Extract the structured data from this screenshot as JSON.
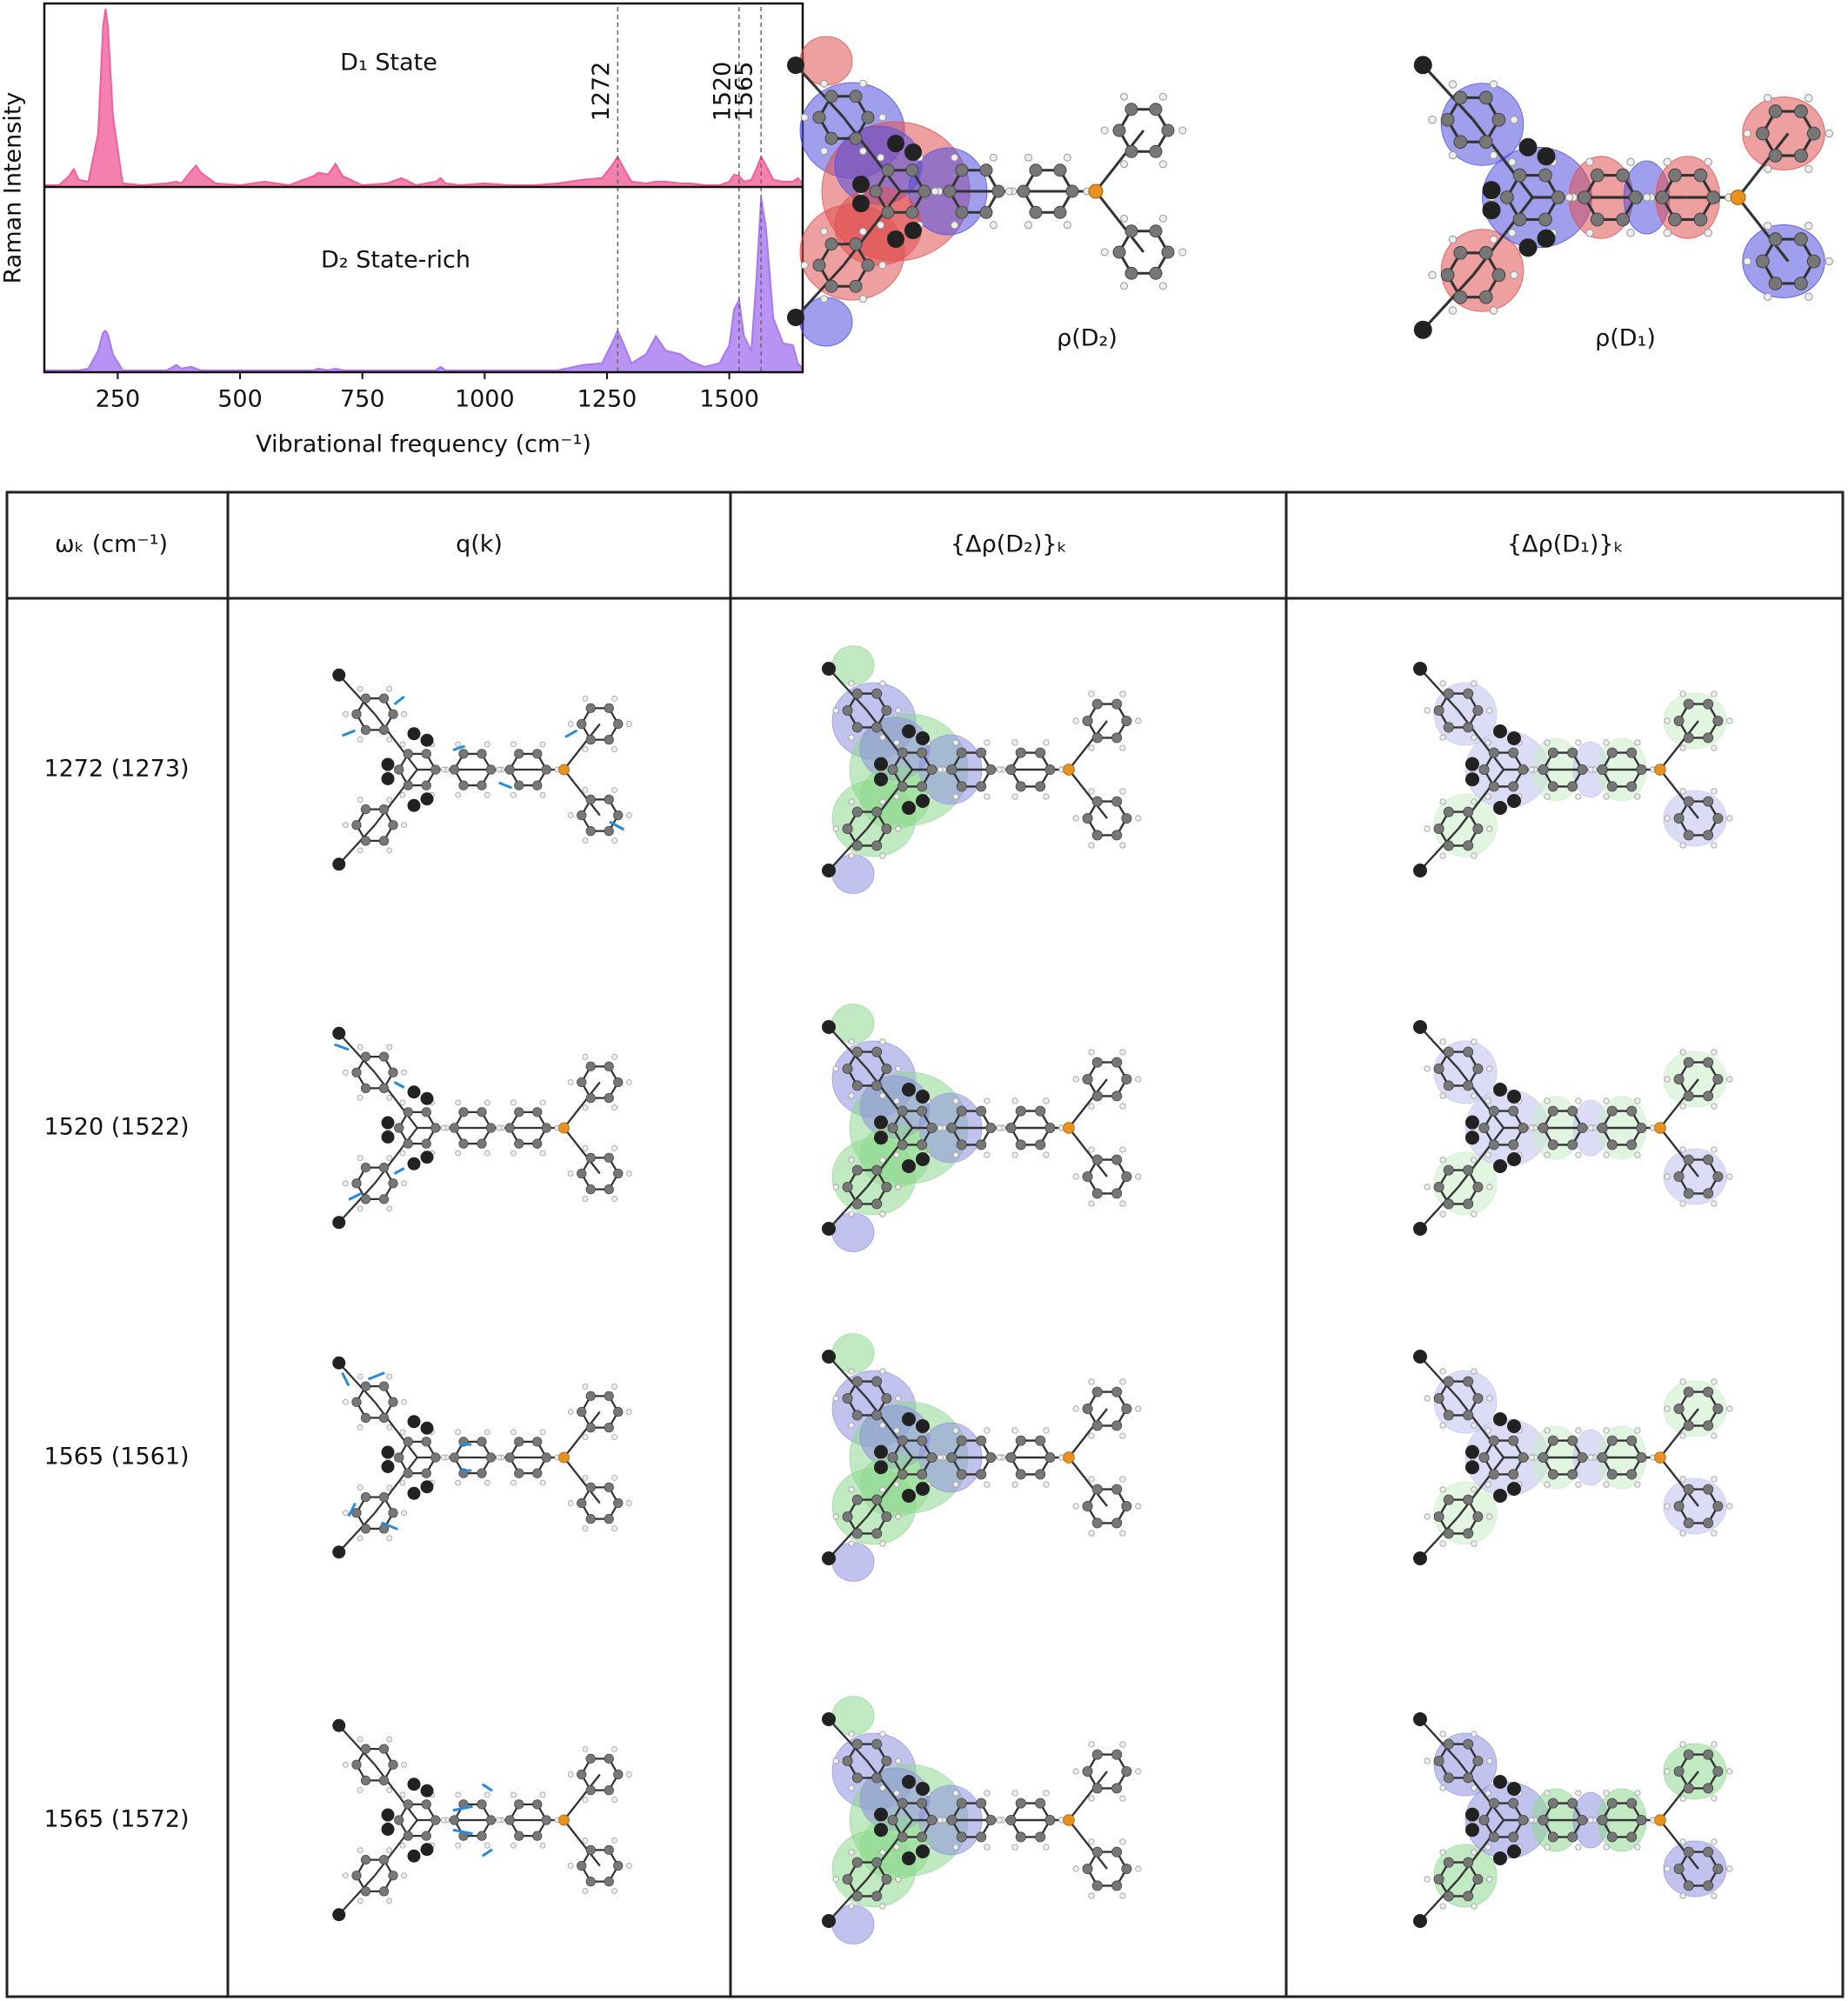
{
  "chart_data": {
    "type": "area",
    "xlabel": "Vibrational frequency (cm⁻¹)",
    "ylabel": "Raman Intensity",
    "x": [
      100,
      130,
      150,
      160,
      170,
      190,
      210,
      220,
      225,
      230,
      240,
      260,
      300,
      350,
      370,
      380,
      400,
      410,
      420,
      450,
      500,
      550,
      600,
      650,
      660,
      680,
      695,
      710,
      750,
      800,
      830,
      860,
      900,
      910,
      920,
      950,
      1000,
      1050,
      1100,
      1150,
      1200,
      1240,
      1260,
      1272,
      1285,
      1300,
      1330,
      1350,
      1370,
      1400,
      1420,
      1450,
      1480,
      1500,
      1510,
      1520,
      1530,
      1545,
      1555,
      1565,
      1575,
      1590,
      1610,
      1630,
      1640,
      1650
    ],
    "series": [
      {
        "name": "D₁ State",
        "color": "#f0609a",
        "values": [
          0.01,
          0.01,
          0.06,
          0.1,
          0.04,
          0.03,
          0.3,
          0.9,
          1.0,
          0.9,
          0.4,
          0.02,
          0.01,
          0.02,
          0.03,
          0.02,
          0.09,
          0.12,
          0.08,
          0.02,
          0.01,
          0.03,
          0.01,
          0.06,
          0.08,
          0.07,
          0.13,
          0.06,
          0.01,
          0.02,
          0.05,
          0.01,
          0.03,
          0.05,
          0.02,
          0.01,
          0.02,
          0.01,
          0.01,
          0.02,
          0.04,
          0.05,
          0.12,
          0.17,
          0.1,
          0.03,
          0.02,
          0.03,
          0.03,
          0.02,
          0.02,
          0.01,
          0.01,
          0.03,
          0.07,
          0.06,
          0.03,
          0.04,
          0.1,
          0.17,
          0.12,
          0.04,
          0.03,
          0.03,
          0.05,
          0.02
        ]
      },
      {
        "name": "D₂ State-rich",
        "color": "#a878f0",
        "values": [
          0.01,
          0.01,
          0.01,
          0.01,
          0.01,
          0.02,
          0.12,
          0.22,
          0.23,
          0.21,
          0.1,
          0.01,
          0.01,
          0.01,
          0.04,
          0.02,
          0.03,
          0.02,
          0.01,
          0.01,
          0.01,
          0.01,
          0.01,
          0.01,
          0.02,
          0.01,
          0.02,
          0.01,
          0.01,
          0.01,
          0.01,
          0.01,
          0.01,
          0.03,
          0.01,
          0.01,
          0.01,
          0.01,
          0.01,
          0.01,
          0.04,
          0.05,
          0.16,
          0.23,
          0.15,
          0.05,
          0.1,
          0.2,
          0.12,
          0.1,
          0.06,
          0.03,
          0.05,
          0.15,
          0.35,
          0.4,
          0.2,
          0.12,
          0.5,
          0.97,
          0.8,
          0.3,
          0.16,
          0.15,
          0.05,
          0.02
        ]
      }
    ],
    "xlim": [
      100,
      1650
    ],
    "xticks": [
      250,
      500,
      750,
      1000,
      1250,
      1500
    ],
    "ylim": [
      0,
      1.03
    ],
    "vlines": [
      1272,
      1520,
      1565
    ]
  },
  "density_labels": [
    "ρ(D₂)",
    "ρ(D₁)"
  ],
  "table": {
    "header": [
      "ωₖ (cm⁻¹)",
      "q(k)",
      "{Δρ(D₂)}ₖ",
      "{Δρ(D₁)}ₖ"
    ],
    "rows": [
      "1272 (1273)",
      "1520 (1522)",
      "1565 (1561)",
      "1565 (1572)"
    ]
  }
}
